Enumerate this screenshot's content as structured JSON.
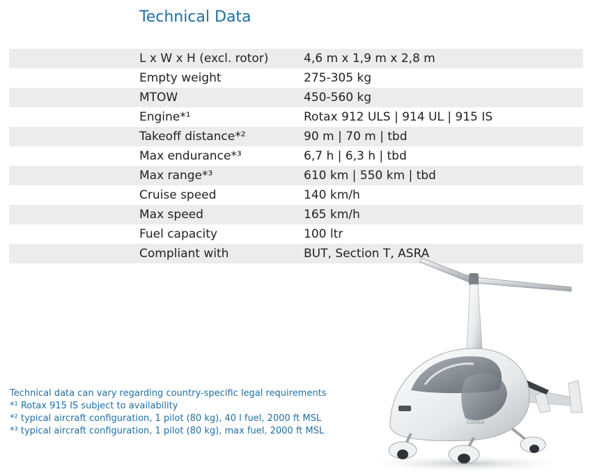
{
  "title": "Technical Data",
  "specs": [
    {
      "label": "L x W x H (excl. rotor)",
      "value": "4,6 m x 1,9 m x 2,8 m"
    },
    {
      "label": "Empty weight",
      "value": "275-305 kg"
    },
    {
      "label": "MTOW",
      "value": "450-560 kg"
    },
    {
      "label": "Engine*¹",
      "value": "Rotax 912 ULS | 914 UL | 915 IS"
    },
    {
      "label": "Takeoff distance*²",
      "value": "90 m | 70 m | tbd"
    },
    {
      "label": "Max endurance*³",
      "value": "6,7 h | 6,3 h | tbd"
    },
    {
      "label": "Max range*³",
      "value": "610 km | 550 km | tbd"
    },
    {
      "label": "Cruise speed",
      "value": "140 km/h"
    },
    {
      "label": "Max speed",
      "value": "165 km/h"
    },
    {
      "label": "Fuel capacity",
      "value": "100 ltr"
    },
    {
      "label": "Compliant with",
      "value": "BUT, Section T, ASRA"
    }
  ],
  "footnotes": [
    "Technical data can vary regarding country-specific legal requirements",
    "*¹ Rotax 915 IS subject to availability",
    "*² typical aircraft configuration, 1 pilot (80 kg), 40 l fuel, 2000 ft MSL",
    "*³ typical aircraft configuration, 1 pilot (80 kg), max fuel, 2000 ft MSL"
  ],
  "image": {
    "subject": "white enclosed-cockpit gyroplane",
    "fuselage_lettering": "Calidus"
  },
  "colors": {
    "title": "#1f6fa3",
    "footnotes": "#1f6fa3",
    "row_shade": "#ececec",
    "text": "#222222"
  }
}
